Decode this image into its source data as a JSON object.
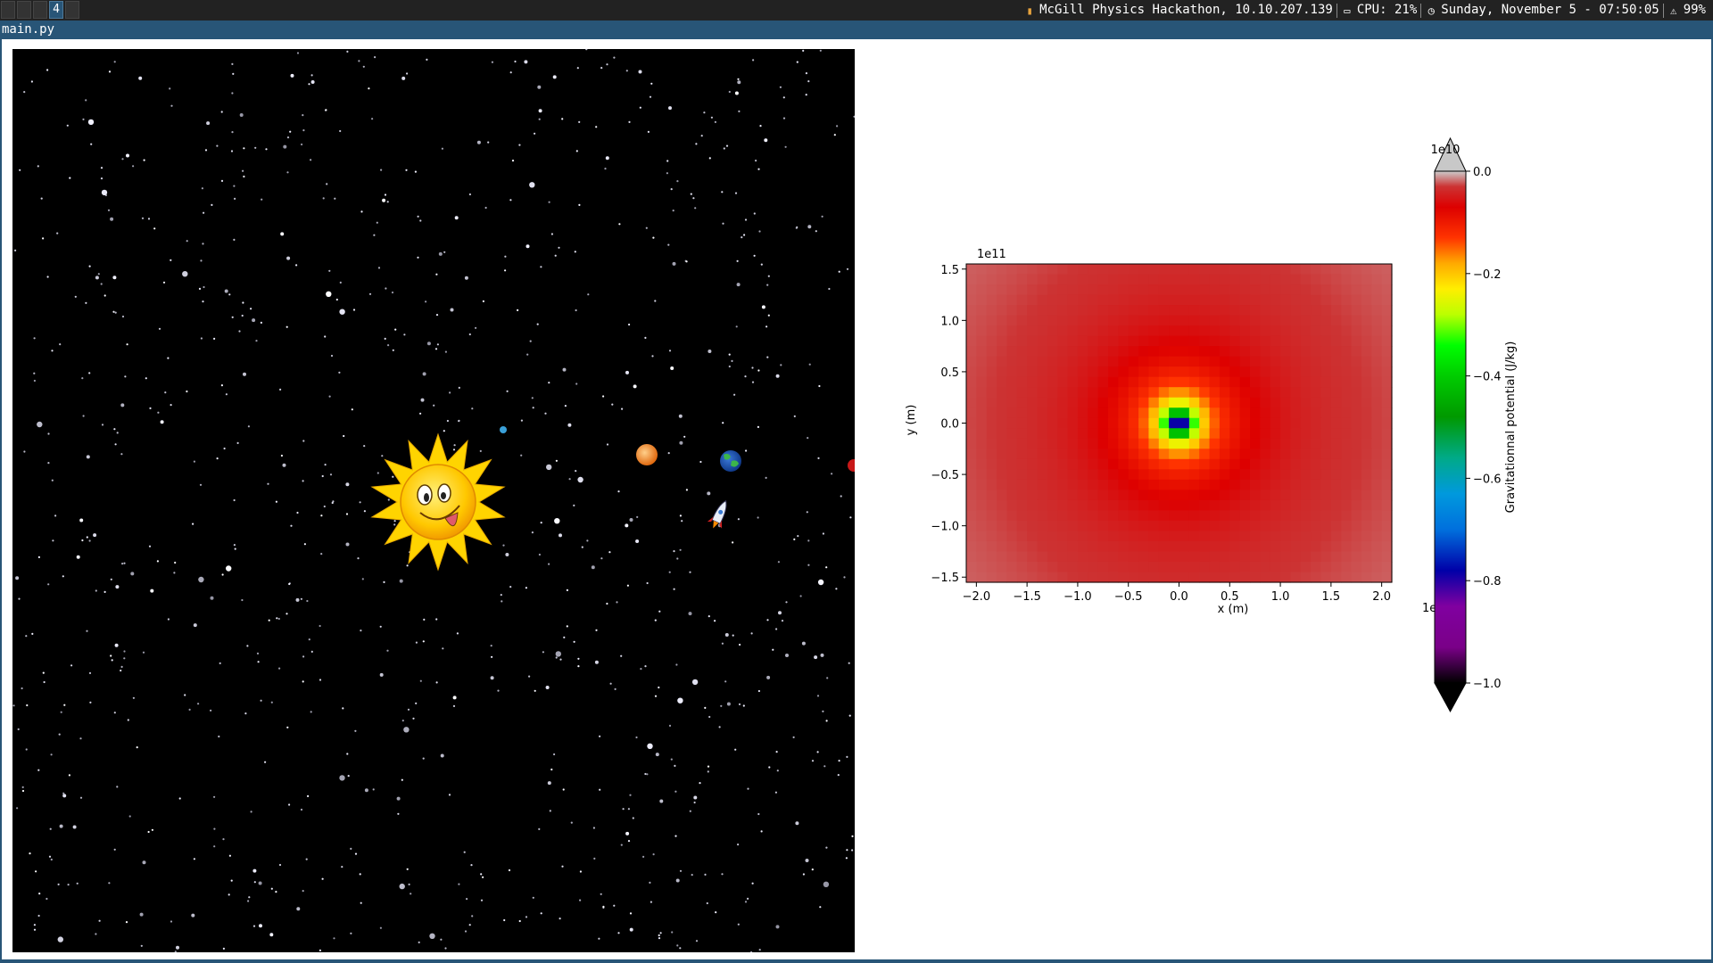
{
  "workspaces": [
    "",
    "",
    "",
    "4",
    ""
  ],
  "status": {
    "network": "McGill Physics Hackathon, 10.10.207.139",
    "cpu": "CPU: 21%",
    "datetime": "Sunday, November  5 - 07:50:05",
    "battery": "99%"
  },
  "window": {
    "title": "main.py"
  },
  "scene": {
    "bodies": [
      "sun",
      "small-blue-planet",
      "orange-planet",
      "earth",
      "red-planet",
      "rocket"
    ]
  },
  "chart_data": {
    "type": "heatmap",
    "xlabel": "x (m)",
    "ylabel": "y (m)",
    "x_offset_label": "1e11",
    "y_offset_label": "1e11",
    "xlim": [
      -2.1,
      2.1
    ],
    "ylim": [
      -1.55,
      1.55
    ],
    "xticks": [
      "−2.0",
      "−1.5",
      "−1.0",
      "−0.5",
      "0.0",
      "0.5",
      "1.0",
      "1.5",
      "2.0"
    ],
    "xtick_values": [
      -2.0,
      -1.5,
      -1.0,
      -0.5,
      0.0,
      0.5,
      1.0,
      1.5,
      2.0
    ],
    "yticks": [
      "1.5",
      "1.0",
      "0.5",
      "0.0",
      "−0.5",
      "−1.0",
      "−1.5"
    ],
    "ytick_values": [
      1.5,
      1.0,
      0.5,
      0.0,
      -0.5,
      -1.0,
      -1.5
    ],
    "grid": false,
    "colorbar": {
      "label": "Gravitationnal potential (J/kg)",
      "offset_label": "1e10",
      "range": [
        -1.0,
        0.0
      ],
      "ticks": [
        "0.0",
        "−0.2",
        "−0.4",
        "−0.6",
        "−0.8",
        "−1.0"
      ],
      "tick_values": [
        0.0,
        -0.2,
        -0.4,
        -0.6,
        -0.8,
        -1.0
      ],
      "extend": "both",
      "colormap": "nipy_spectral"
    },
    "field": {
      "description": "potential minimum at origin, ~-1.0e10 J/kg at center, rising to ~-0.05e10 at edges",
      "center_x": 0.0,
      "center_y": 0.0,
      "min_value": -1.0,
      "edge_value": -0.05
    }
  }
}
